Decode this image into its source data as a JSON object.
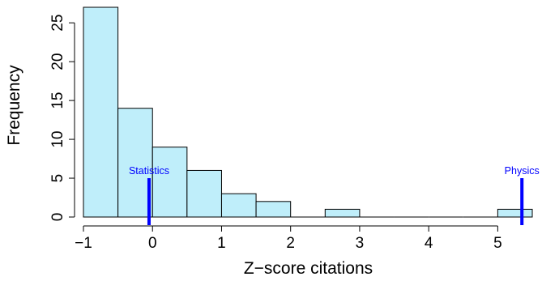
{
  "chart_data": {
    "type": "bar",
    "xlabel": "Z−score citations",
    "ylabel": "Frequency",
    "xlim": [
      -1,
      5.5
    ],
    "ylim": [
      0,
      27
    ],
    "bins": [
      {
        "from": -1.0,
        "to": -0.5,
        "count": 27
      },
      {
        "from": -0.5,
        "to": 0.0,
        "count": 14
      },
      {
        "from": 0.0,
        "to": 0.5,
        "count": 9
      },
      {
        "from": 0.5,
        "to": 1.0,
        "count": 6
      },
      {
        "from": 1.0,
        "to": 1.5,
        "count": 3
      },
      {
        "from": 1.5,
        "to": 2.0,
        "count": 2
      },
      {
        "from": 2.0,
        "to": 2.5,
        "count": 0
      },
      {
        "from": 2.5,
        "to": 3.0,
        "count": 1
      },
      {
        "from": 3.0,
        "to": 3.5,
        "count": 0
      },
      {
        "from": 3.5,
        "to": 4.0,
        "count": 0
      },
      {
        "from": 4.0,
        "to": 4.5,
        "count": 0
      },
      {
        "from": 4.5,
        "to": 5.0,
        "count": 0
      },
      {
        "from": 5.0,
        "to": 5.5,
        "count": 1
      }
    ],
    "x_ticks": [
      -1,
      0,
      1,
      2,
      3,
      4,
      5
    ],
    "x_tick_labels": [
      "−1",
      "0",
      "1",
      "2",
      "3",
      "4",
      "5"
    ],
    "y_ticks": [
      0,
      5,
      10,
      15,
      20,
      25
    ],
    "y_tick_labels": [
      "0",
      "5",
      "10",
      "15",
      "20",
      "25"
    ],
    "annotations": [
      {
        "label": "Statistics",
        "x": -0.05,
        "y_top": 5
      },
      {
        "label": "Physics",
        "x": 5.35,
        "y_top": 5
      }
    ],
    "bar_color": "#bfeefa",
    "bar_edge_color": "#000000",
    "annotation_color": "#0000ff",
    "grid": false,
    "legend": "none"
  }
}
